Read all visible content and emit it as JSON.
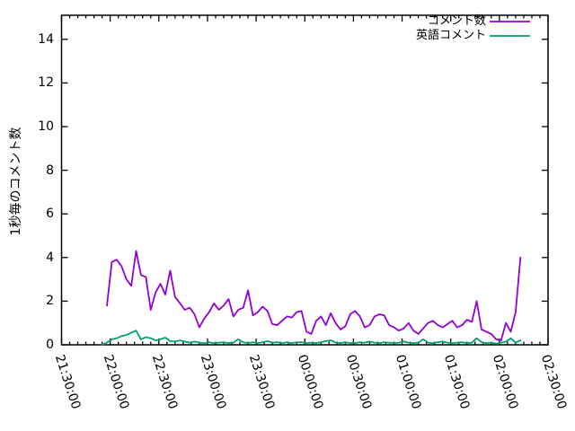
{
  "chart_data": {
    "type": "line",
    "title": "",
    "ylabel": "1秒毎のコメント数",
    "xlabel": "",
    "grid": false,
    "legend_position": "top-right-inside",
    "x_axis": {
      "tick_labels": [
        "21:30:00",
        "22:00:00",
        "22:30:00",
        "23:00:00",
        "23:30:00",
        "00:00:00",
        "00:30:00",
        "01:00:00",
        "01:30:00",
        "02:00:00",
        "02:30:00"
      ],
      "major_tick_interval_minutes": 30,
      "minor_tick_interval_minutes": 5,
      "range_minutes_from_2130": [
        0,
        300
      ]
    },
    "y_axis": {
      "ticks": [
        0,
        2,
        4,
        6,
        8,
        10,
        12,
        14
      ],
      "range": [
        0,
        15.1
      ]
    },
    "series": [
      {
        "name": "コメント数",
        "color": "#9400d3",
        "x_minutes_from_2130": [
          28,
          31,
          34,
          37,
          40,
          43,
          46,
          49,
          52,
          55,
          58,
          61,
          64,
          67,
          70,
          73,
          76,
          79,
          82,
          85,
          88,
          91,
          94,
          97,
          100,
          103,
          106,
          109,
          112,
          115,
          118,
          121,
          124,
          127,
          130,
          133,
          136,
          139,
          142,
          145,
          148,
          151,
          154,
          157,
          160,
          163,
          166,
          169,
          172,
          175,
          178,
          181,
          184,
          187,
          190,
          193,
          196,
          199,
          202,
          205,
          208,
          211,
          214,
          217,
          220,
          223,
          226,
          229,
          232,
          235,
          238,
          241,
          244,
          247,
          250,
          253,
          256,
          259,
          262,
          265,
          268,
          271,
          274,
          277,
          280,
          283
        ],
        "values": [
          1.8,
          3.8,
          3.9,
          3.6,
          3.0,
          2.7,
          4.3,
          3.2,
          3.1,
          1.6,
          2.4,
          2.8,
          2.3,
          3.4,
          2.2,
          1.9,
          1.6,
          1.7,
          1.4,
          0.8,
          1.2,
          1.5,
          1.9,
          1.6,
          1.8,
          2.1,
          1.3,
          1.6,
          1.7,
          2.5,
          1.35,
          1.5,
          1.75,
          1.55,
          0.95,
          0.9,
          1.1,
          1.3,
          1.25,
          1.5,
          1.55,
          0.6,
          0.5,
          1.1,
          1.3,
          0.9,
          1.45,
          1.0,
          0.7,
          0.85,
          1.4,
          1.55,
          1.3,
          0.8,
          0.9,
          1.3,
          1.4,
          1.35,
          0.9,
          0.8,
          0.65,
          0.75,
          1.0,
          0.65,
          0.5,
          0.75,
          1.0,
          1.1,
          0.9,
          0.8,
          0.95,
          1.1,
          0.8,
          0.9,
          1.15,
          1.05,
          2.0,
          0.7,
          0.6,
          0.5,
          0.25,
          0.2,
          1.0,
          0.6,
          1.5,
          4.0
        ]
      },
      {
        "name": "英語コメント",
        "color": "#009e73",
        "x_minutes_from_2130": [
          25,
          28,
          31,
          34,
          37,
          40,
          43,
          46,
          49,
          52,
          55,
          58,
          61,
          64,
          67,
          70,
          73,
          76,
          79,
          82,
          85,
          88,
          91,
          94,
          97,
          100,
          103,
          106,
          109,
          112,
          115,
          118,
          121,
          124,
          127,
          130,
          133,
          136,
          139,
          142,
          145,
          148,
          151,
          154,
          157,
          160,
          163,
          166,
          169,
          172,
          175,
          178,
          181,
          184,
          187,
          190,
          193,
          196,
          199,
          202,
          205,
          208,
          211,
          214,
          217,
          220,
          223,
          226,
          229,
          232,
          235,
          238,
          241,
          244,
          247,
          250,
          253,
          256,
          259,
          262,
          265,
          268,
          271,
          274,
          277,
          280,
          283
        ],
        "values": [
          0.0,
          0.1,
          0.25,
          0.3,
          0.4,
          0.45,
          0.55,
          0.65,
          0.25,
          0.35,
          0.3,
          0.2,
          0.25,
          0.33,
          0.17,
          0.15,
          0.2,
          0.15,
          0.1,
          0.15,
          0.1,
          0.08,
          0.12,
          0.08,
          0.1,
          0.12,
          0.08,
          0.1,
          0.25,
          0.12,
          0.08,
          0.12,
          0.08,
          0.12,
          0.17,
          0.1,
          0.12,
          0.08,
          0.12,
          0.08,
          0.12,
          0.12,
          0.08,
          0.1,
          0.08,
          0.12,
          0.17,
          0.2,
          0.1,
          0.08,
          0.12,
          0.08,
          0.08,
          0.12,
          0.1,
          0.15,
          0.1,
          0.08,
          0.12,
          0.1,
          0.08,
          0.1,
          0.15,
          0.1,
          0.08,
          0.1,
          0.25,
          0.1,
          0.08,
          0.12,
          0.15,
          0.1,
          0.08,
          0.1,
          0.12,
          0.08,
          0.1,
          0.3,
          0.12,
          0.08,
          0.1,
          0.05,
          0.1,
          0.15,
          0.3,
          0.1,
          0.2
        ]
      }
    ]
  },
  "colors": {
    "background": "#ffffff",
    "axis": "#000000",
    "text": "#000000"
  }
}
